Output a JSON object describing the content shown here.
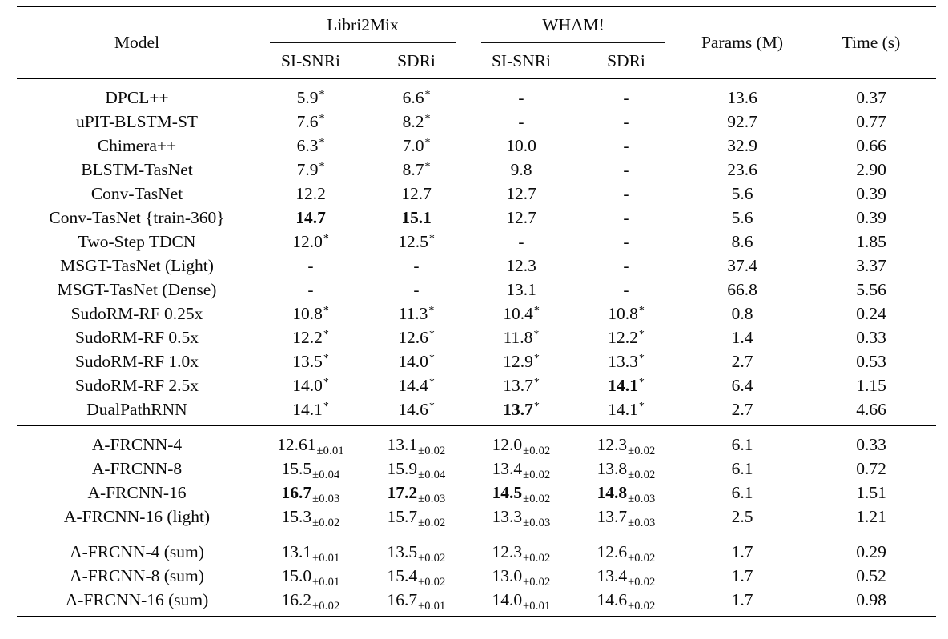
{
  "header": {
    "model_label": "Model",
    "groups": [
      {
        "label": "Libri2Mix",
        "cols": [
          "SI-SNRi",
          "SDRi"
        ]
      },
      {
        "label": "WHAM!",
        "cols": [
          "SI-SNRi",
          "SDRi"
        ]
      }
    ],
    "params_label": "Params (M)",
    "time_label": "Time (s)"
  },
  "sections": [
    {
      "rows": [
        {
          "model": "DPCL++",
          "values": [
            {
              "v": "5.9",
              "sup": "*"
            },
            {
              "v": "6.6",
              "sup": "*"
            },
            {
              "v": "-"
            },
            {
              "v": "-"
            }
          ],
          "params": "13.6",
          "time": "0.37"
        },
        {
          "model": "uPIT-BLSTM-ST",
          "values": [
            {
              "v": "7.6",
              "sup": "*"
            },
            {
              "v": "8.2",
              "sup": "*"
            },
            {
              "v": "-"
            },
            {
              "v": "-"
            }
          ],
          "params": "92.7",
          "time": "0.77"
        },
        {
          "model": "Chimera++",
          "values": [
            {
              "v": "6.3",
              "sup": "*"
            },
            {
              "v": "7.0",
              "sup": "*"
            },
            {
              "v": "10.0"
            },
            {
              "v": "-"
            }
          ],
          "params": "32.9",
          "time": "0.66"
        },
        {
          "model": "BLSTM-TasNet",
          "values": [
            {
              "v": "7.9",
              "sup": "*"
            },
            {
              "v": "8.7",
              "sup": "*"
            },
            {
              "v": "9.8"
            },
            {
              "v": "-"
            }
          ],
          "params": "23.6",
          "time": "2.90"
        },
        {
          "model": "Conv-TasNet",
          "values": [
            {
              "v": "12.2"
            },
            {
              "v": "12.7"
            },
            {
              "v": "12.7"
            },
            {
              "v": "-"
            }
          ],
          "params": "5.6",
          "time": "0.39"
        },
        {
          "model": "Conv-TasNet {train-360}",
          "values": [
            {
              "v": "14.7",
              "bold": true
            },
            {
              "v": "15.1",
              "bold": true
            },
            {
              "v": "12.7"
            },
            {
              "v": "-"
            }
          ],
          "params": "5.6",
          "time": "0.39"
        },
        {
          "model": "Two-Step TDCN",
          "values": [
            {
              "v": "12.0",
              "sup": "*"
            },
            {
              "v": "12.5",
              "sup": "*"
            },
            {
              "v": "-"
            },
            {
              "v": "-"
            }
          ],
          "params": "8.6",
          "time": "1.85"
        },
        {
          "model": "MSGT-TasNet (Light)",
          "values": [
            {
              "v": "-"
            },
            {
              "v": "-"
            },
            {
              "v": "12.3"
            },
            {
              "v": "-"
            }
          ],
          "params": "37.4",
          "time": "3.37"
        },
        {
          "model": "MSGT-TasNet (Dense)",
          "values": [
            {
              "v": "-"
            },
            {
              "v": "-"
            },
            {
              "v": "13.1"
            },
            {
              "v": "-"
            }
          ],
          "params": "66.8",
          "time": "5.56"
        },
        {
          "model": "SudoRM-RF 0.25x",
          "values": [
            {
              "v": "10.8",
              "sup": "*"
            },
            {
              "v": "11.3",
              "sup": "*"
            },
            {
              "v": "10.4",
              "sup": "*"
            },
            {
              "v": "10.8",
              "sup": "*"
            }
          ],
          "params": "0.8",
          "time": "0.24"
        },
        {
          "model": "SudoRM-RF 0.5x",
          "values": [
            {
              "v": "12.2",
              "sup": "*"
            },
            {
              "v": "12.6",
              "sup": "*"
            },
            {
              "v": "11.8",
              "sup": "*"
            },
            {
              "v": "12.2",
              "sup": "*"
            }
          ],
          "params": "1.4",
          "time": "0.33"
        },
        {
          "model": "SudoRM-RF 1.0x",
          "values": [
            {
              "v": "13.5",
              "sup": "*"
            },
            {
              "v": "14.0",
              "sup": "*"
            },
            {
              "v": "12.9",
              "sup": "*"
            },
            {
              "v": "13.3",
              "sup": "*"
            }
          ],
          "params": "2.7",
          "time": "0.53"
        },
        {
          "model": "SudoRM-RF 2.5x",
          "values": [
            {
              "v": "14.0",
              "sup": "*"
            },
            {
              "v": "14.4",
              "sup": "*"
            },
            {
              "v": "13.7",
              "sup": "*"
            },
            {
              "v": "14.1",
              "sup": "*",
              "bold": true
            }
          ],
          "params": "6.4",
          "time": "1.15"
        },
        {
          "model": "DualPathRNN",
          "values": [
            {
              "v": "14.1",
              "sup": "*"
            },
            {
              "v": "14.6",
              "sup": "*"
            },
            {
              "v": "13.7",
              "sup": "*",
              "bold": true
            },
            {
              "v": "14.1",
              "sup": "*"
            }
          ],
          "params": "2.7",
          "time": "4.66"
        }
      ]
    },
    {
      "rows": [
        {
          "model": "A-FRCNN-4",
          "values": [
            {
              "v": "12.61",
              "sub": "±0.01"
            },
            {
              "v": "13.1",
              "sub": "±0.02"
            },
            {
              "v": "12.0",
              "sub": "±0.02"
            },
            {
              "v": "12.3",
              "sub": "±0.02"
            }
          ],
          "params": "6.1",
          "time": "0.33"
        },
        {
          "model": "A-FRCNN-8",
          "values": [
            {
              "v": "15.5",
              "sub": "±0.04"
            },
            {
              "v": "15.9",
              "sub": "±0.04"
            },
            {
              "v": "13.4",
              "sub": "±0.02"
            },
            {
              "v": "13.8",
              "sub": "±0.02"
            }
          ],
          "params": "6.1",
          "time": "0.72"
        },
        {
          "model": "A-FRCNN-16",
          "values": [
            {
              "v": "16.7",
              "sub": "±0.03",
              "bold": true
            },
            {
              "v": "17.2",
              "sub": "±0.03",
              "bold": true
            },
            {
              "v": "14.5",
              "sub": "±0.02",
              "bold": true
            },
            {
              "v": "14.8",
              "sub": "±0.03",
              "bold": true
            }
          ],
          "params": "6.1",
          "time": "1.51"
        },
        {
          "model": "A-FRCNN-16 (light)",
          "values": [
            {
              "v": "15.3",
              "sub": "±0.02"
            },
            {
              "v": "15.7",
              "sub": "±0.02"
            },
            {
              "v": "13.3",
              "sub": "±0.03"
            },
            {
              "v": "13.7",
              "sub": "±0.03"
            }
          ],
          "params": "2.5",
          "time": "1.21"
        }
      ]
    },
    {
      "rows": [
        {
          "model": "A-FRCNN-4 (sum)",
          "values": [
            {
              "v": "13.1",
              "sub": "±0.01"
            },
            {
              "v": "13.5",
              "sub": "±0.02"
            },
            {
              "v": "12.3",
              "sub": "±0.02"
            },
            {
              "v": "12.6",
              "sub": "±0.02"
            }
          ],
          "params": "1.7",
          "time": "0.29"
        },
        {
          "model": "A-FRCNN-8 (sum)",
          "values": [
            {
              "v": "15.0",
              "sub": "±0.01"
            },
            {
              "v": "15.4",
              "sub": "±0.02"
            },
            {
              "v": "13.0",
              "sub": "±0.02"
            },
            {
              "v": "13.4",
              "sub": "±0.02"
            }
          ],
          "params": "1.7",
          "time": "0.52"
        },
        {
          "model": "A-FRCNN-16 (sum)",
          "values": [
            {
              "v": "16.2",
              "sub": "±0.02"
            },
            {
              "v": "16.7",
              "sub": "±0.01"
            },
            {
              "v": "14.0",
              "sub": "±0.01"
            },
            {
              "v": "14.6",
              "sub": "±0.02"
            }
          ],
          "params": "1.7",
          "time": "0.98"
        }
      ]
    }
  ]
}
